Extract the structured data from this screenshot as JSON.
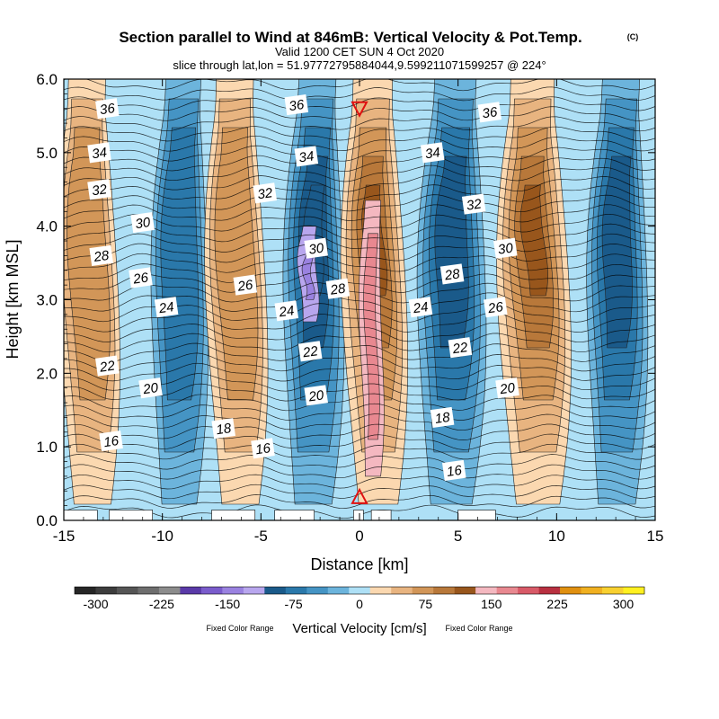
{
  "title": "Section parallel to Wind at 846mB: Vertical Velocity & Pot.Temp.",
  "copyright": "(C)",
  "valid_line": "Valid 1200 CET SUN 4 Oct 2020",
  "slice_line": "slice through lat,lon = 51.97772795884044,9.599211071599257 @ 224°",
  "colorbar": {
    "label": "Vertical Velocity [cm/s]",
    "note_left": "Fixed Color Range",
    "note_right": "Fixed Color Range",
    "ticks": [
      "-300",
      "-225",
      "-150",
      "-75",
      "0",
      "75",
      "150",
      "225",
      "300"
    ],
    "colors": [
      "#262626",
      "#3d3d3d",
      "#555555",
      "#6e6e6e",
      "#8c8c8c",
      "#5a3aa8",
      "#7a5ccc",
      "#9a82e0",
      "#b8a6ee",
      "#1a5a8a",
      "#2a78aa",
      "#4594c4",
      "#6cb4dc",
      "#aee0f6",
      "#fbd8b0",
      "#e8b480",
      "#d29658",
      "#b8783a",
      "#98561c",
      "#f4b8c0",
      "#e88890",
      "#d85a68",
      "#b83040",
      "#e09010",
      "#f0b020",
      "#f8d030",
      "#fff020"
    ]
  },
  "colors": {
    "up_1": "#fbd8b0",
    "up_2": "#e8b480",
    "up_3": "#d29658",
    "up_4": "#b8783a",
    "up_5": "#98561c",
    "pink_1": "#f4b8c0",
    "pink_2": "#e88890",
    "down_1": "#aee0f6",
    "down_2": "#6cb4dc",
    "down_3": "#4594c4",
    "down_4": "#2a78aa",
    "down_5": "#1a5a8a",
    "purple_1": "#b8a6ee",
    "purple_2": "#9a82e0",
    "marker": "#e01010"
  },
  "chart_data": {
    "type": "heatmap",
    "xlabel": "Distance [km]",
    "ylabel": "Height [km MSL]",
    "xlim": [
      -15,
      15
    ],
    "ylim": [
      0,
      6
    ],
    "xticks": [
      "-15",
      "-10",
      "-5",
      "0",
      "5",
      "10",
      "15"
    ],
    "yticks": [
      "0.0",
      "1.0",
      "2.0",
      "3.0",
      "4.0",
      "5.0",
      "6.0"
    ],
    "field": "Vertical Velocity [cm/s]",
    "field_range": [
      -300,
      300
    ],
    "contour_field": "Pot.Temp.",
    "bands": [
      {
        "x": -13.6,
        "w": 3.2,
        "kind": "up",
        "levels": 3
      },
      {
        "x": -9.2,
        "w": 3.0,
        "kind": "down",
        "levels": 3
      },
      {
        "x": -6.1,
        "w": 3.2,
        "kind": "up",
        "levels": 3
      },
      {
        "x": -2.4,
        "w": 3.2,
        "kind": "down",
        "levels": 5,
        "core": "purple"
      },
      {
        "x": 0.9,
        "w": 3.4,
        "kind": "up",
        "levels": 5,
        "core": "pink"
      },
      {
        "x": 4.6,
        "w": 3.6,
        "kind": "down",
        "levels": 4
      },
      {
        "x": 9.0,
        "w": 3.8,
        "kind": "up",
        "levels": 5
      },
      {
        "x": 13.0,
        "w": 3.2,
        "kind": "down",
        "levels": 4
      }
    ],
    "contour_labels": [
      {
        "text": "36",
        "x": -12.8,
        "y": 5.6
      },
      {
        "text": "34",
        "x": -13.2,
        "y": 5.0
      },
      {
        "text": "32",
        "x": -13.2,
        "y": 4.5
      },
      {
        "text": "30",
        "x": -11.0,
        "y": 4.05
      },
      {
        "text": "28",
        "x": -13.1,
        "y": 3.6
      },
      {
        "text": "26",
        "x": -11.1,
        "y": 3.3
      },
      {
        "text": "24",
        "x": -9.8,
        "y": 2.9
      },
      {
        "text": "22",
        "x": -12.8,
        "y": 2.1
      },
      {
        "text": "20",
        "x": -10.6,
        "y": 1.8
      },
      {
        "text": "18",
        "x": -6.9,
        "y": 1.25
      },
      {
        "text": "16",
        "x": -12.6,
        "y": 1.08
      },
      {
        "text": "16",
        "x": -4.9,
        "y": 0.98
      },
      {
        "text": "26",
        "x": -5.8,
        "y": 3.2
      },
      {
        "text": "32",
        "x": -4.8,
        "y": 4.45
      },
      {
        "text": "36",
        "x": -3.2,
        "y": 5.65
      },
      {
        "text": "34",
        "x": -2.7,
        "y": 4.95
      },
      {
        "text": "30",
        "x": -2.2,
        "y": 3.7
      },
      {
        "text": "28",
        "x": -1.1,
        "y": 3.15
      },
      {
        "text": "24",
        "x": -3.7,
        "y": 2.85
      },
      {
        "text": "22",
        "x": -2.5,
        "y": 2.3
      },
      {
        "text": "20",
        "x": -2.2,
        "y": 1.7
      },
      {
        "text": "34",
        "x": 3.7,
        "y": 5.0
      },
      {
        "text": "36",
        "x": 6.6,
        "y": 5.55
      },
      {
        "text": "32",
        "x": 5.8,
        "y": 4.3
      },
      {
        "text": "30",
        "x": 7.4,
        "y": 3.7
      },
      {
        "text": "28",
        "x": 4.7,
        "y": 3.35
      },
      {
        "text": "26",
        "x": 6.9,
        "y": 2.9
      },
      {
        "text": "24",
        "x": 3.1,
        "y": 2.9
      },
      {
        "text": "22",
        "x": 5.1,
        "y": 2.35
      },
      {
        "text": "20",
        "x": 7.5,
        "y": 1.8
      },
      {
        "text": "18",
        "x": 4.2,
        "y": 1.4
      },
      {
        "text": "16",
        "x": 4.8,
        "y": 0.68
      }
    ],
    "markers": [
      {
        "symbol": "down-triangle",
        "x": 0.0,
        "y": 5.6
      },
      {
        "symbol": "up-triangle",
        "x": 0.0,
        "y": 0.32
      }
    ]
  }
}
